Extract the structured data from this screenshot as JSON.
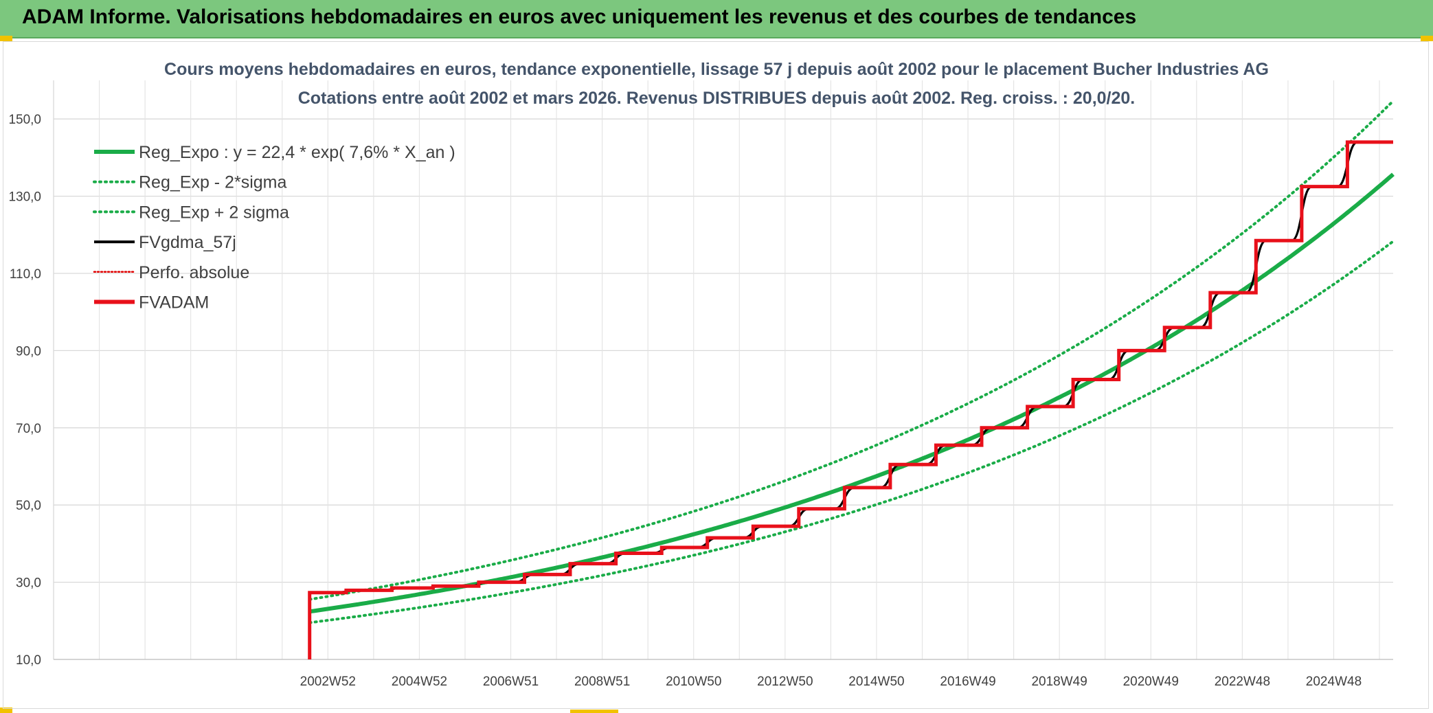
{
  "banner": {
    "title": "ADAM Informe. Valorisations hebdomadaires en euros avec uniquement les revenus et des courbes de tendances"
  },
  "chart_data": {
    "type": "line",
    "title": [
      "Cours moyens hebdomadaires en euros, tendance exponentielle, lissage 57 j depuis août 2002 pour le placement Bucher Industries AG",
      "Cotations entre août 2002 et mars 2026. Revenus DISTRIBUES depuis août 2002. Reg. croiss. : 20,0/20."
    ],
    "xlabel": "",
    "ylabel": "",
    "xlim": [
      1997.0,
      2026.3
    ],
    "ylim": [
      10,
      160
    ],
    "y_ticks": [
      10,
      30,
      50,
      70,
      90,
      110,
      130,
      150
    ],
    "y_tick_labels": [
      "10,0",
      "30,0",
      "50,0",
      "70,0",
      "90,0",
      "110,0",
      "130,0",
      "150,0"
    ],
    "x_ticks": [
      2003.0,
      2005.0,
      2007.0,
      2009.0,
      2011.0,
      2013.0,
      2015.0,
      2017.0,
      2019.0,
      2021.0,
      2023.0,
      2025.0
    ],
    "x_tick_labels": [
      "2002W52",
      "2004W52",
      "2006W51",
      "2008W51",
      "2010W50",
      "2012W50",
      "2014W50",
      "2016W49",
      "2018W49",
      "2020W49",
      "2022W48",
      "2024W48"
    ],
    "legend": [
      {
        "name": "Reg_Expo : y = 22,4 * exp( 7,6% *  X_an )",
        "color": "#1aac48",
        "style": "solid-thick"
      },
      {
        "name": "Reg_Exp - 2*sigma",
        "color": "#1aac48",
        "style": "dotted"
      },
      {
        "name": "Reg_Exp + 2 sigma",
        "color": "#1aac48",
        "style": "dotted"
      },
      {
        "name": "FVgdma_57j",
        "color": "#000000",
        "style": "solid"
      },
      {
        "name": "Perfo. absolue",
        "color": "#e00000",
        "style": "dotted"
      },
      {
        "name": "FVADAM",
        "color": "#e8101a",
        "style": "solid-thick"
      }
    ],
    "regression": {
      "base": 22.4,
      "rate": 0.076,
      "start": 2002.6,
      "end": 2026.3,
      "lower_factor": 0.872,
      "upper_factor": 1.14
    },
    "series": [
      {
        "name": "FVADAM",
        "start": [
          2002.6,
          10.0
        ],
        "steps": [
          {
            "x": 2002.6,
            "y": 27.3
          },
          {
            "x": 2003.4,
            "y": 27.9
          },
          {
            "x": 2004.4,
            "y": 28.5
          },
          {
            "x": 2005.3,
            "y": 29.0
          },
          {
            "x": 2006.3,
            "y": 30.0
          },
          {
            "x": 2007.3,
            "y": 32.0
          },
          {
            "x": 2008.3,
            "y": 34.8
          },
          {
            "x": 2009.3,
            "y": 37.5
          },
          {
            "x": 2010.3,
            "y": 39.0
          },
          {
            "x": 2011.3,
            "y": 41.5
          },
          {
            "x": 2012.3,
            "y": 44.5
          },
          {
            "x": 2013.3,
            "y": 49.0
          },
          {
            "x": 2014.3,
            "y": 54.5
          },
          {
            "x": 2015.3,
            "y": 60.5
          },
          {
            "x": 2016.3,
            "y": 65.5
          },
          {
            "x": 2017.3,
            "y": 70.0
          },
          {
            "x": 2018.3,
            "y": 75.5
          },
          {
            "x": 2019.3,
            "y": 82.5
          },
          {
            "x": 2020.3,
            "y": 90.0
          },
          {
            "x": 2021.3,
            "y": 96.0
          },
          {
            "x": 2022.3,
            "y": 105.0
          },
          {
            "x": 2023.3,
            "y": 118.5
          },
          {
            "x": 2024.3,
            "y": 132.5
          },
          {
            "x": 2025.3,
            "y": 144.0
          }
        ],
        "end_x": 2026.3
      }
    ]
  }
}
